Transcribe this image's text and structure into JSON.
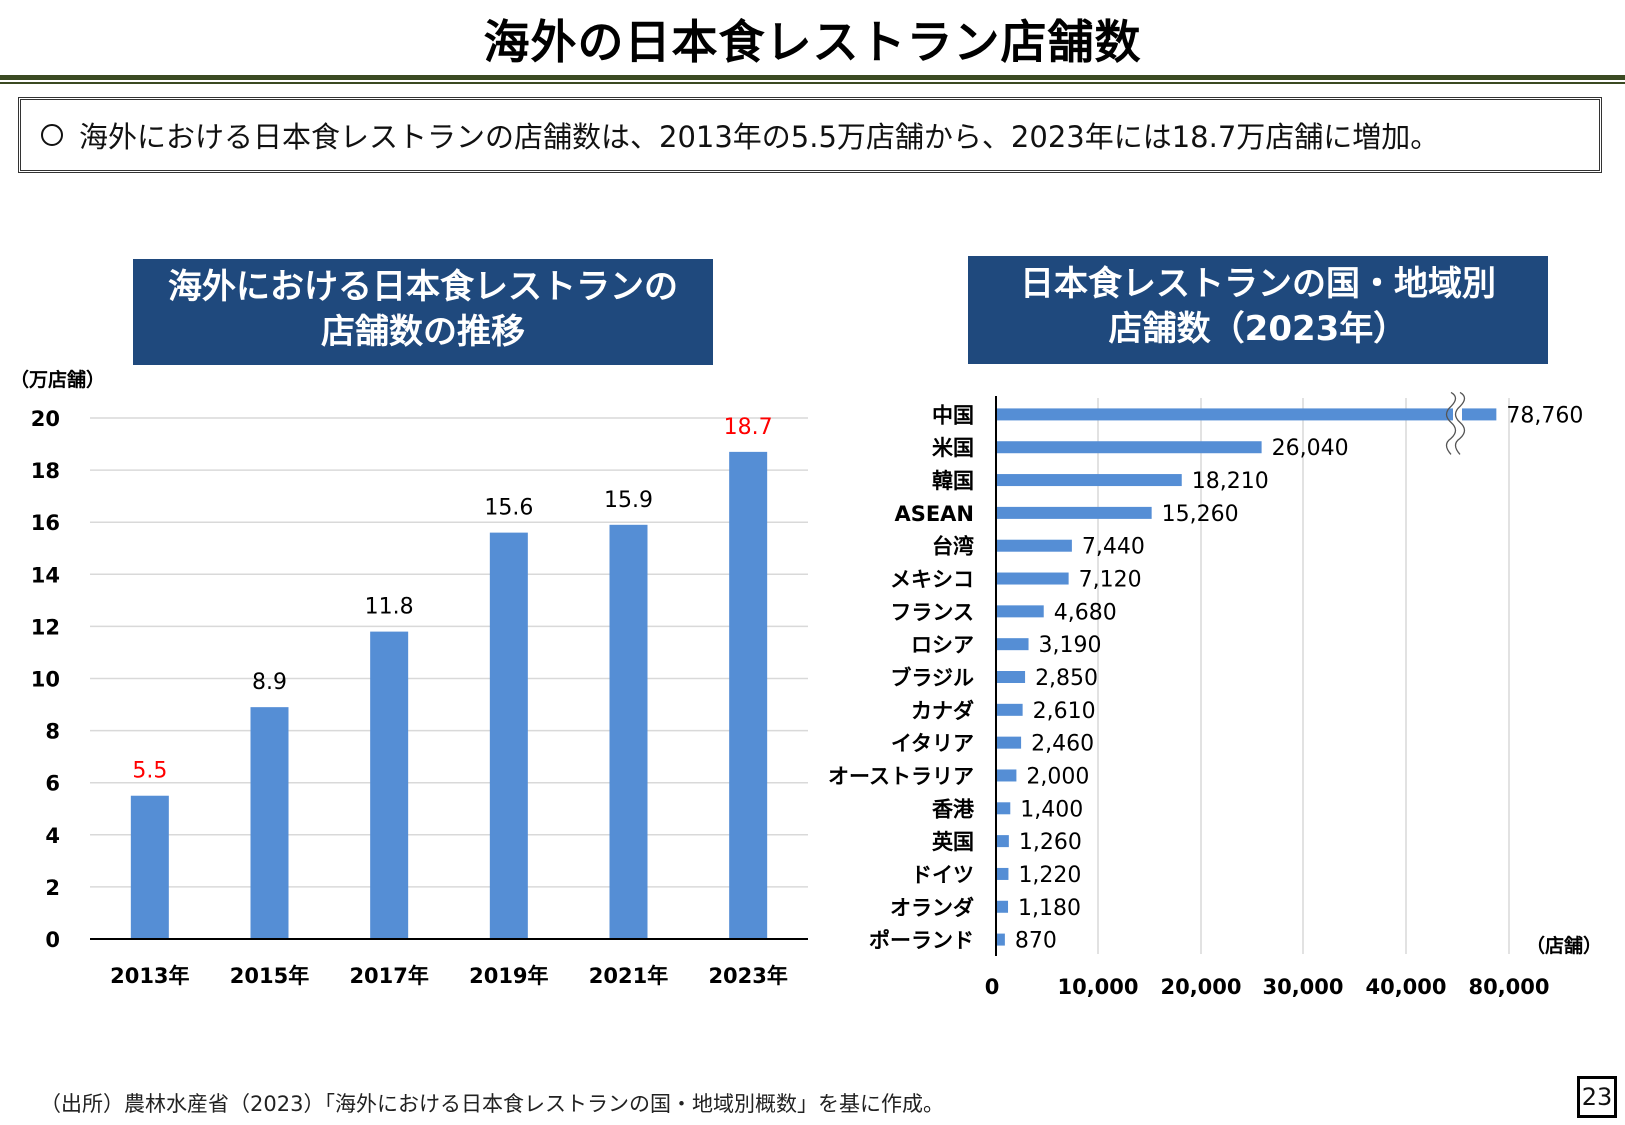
{
  "page": {
    "title": "海外の日本食レストラン店舗数",
    "summary": "海外における日本食レストランの店舗数は、2013年の5.5万店舗から、2023年には18.7万店舗に増加。",
    "source": "（出所）農林水産省（2023）「海外における日本食レストランの国・地域別概数」を基に作成。",
    "page_number": "23"
  },
  "chart_data": [
    {
      "type": "bar",
      "title_lines": [
        "海外における日本食レストランの",
        "店舗数の推移"
      ],
      "ylabel": "（万店舗）",
      "categories": [
        "2013年",
        "2015年",
        "2017年",
        "2019年",
        "2021年",
        "2023年"
      ],
      "values": [
        5.5,
        8.9,
        11.8,
        15.6,
        15.9,
        18.7
      ],
      "ylim": [
        0,
        20
      ],
      "yticks": [
        0,
        2,
        4,
        6,
        8,
        10,
        12,
        14,
        16,
        18,
        20
      ],
      "grid": true,
      "bar_color": "#558ed5",
      "highlight_color": "#ff0000",
      "highlighted": [
        "2013年",
        "2023年"
      ]
    },
    {
      "type": "bar",
      "orientation": "horizontal",
      "title_lines": [
        "日本食レストランの国・地域別",
        "店舗数（2023年）"
      ],
      "xlabel": "（店舗）",
      "categories": [
        "中国",
        "米国",
        "韓国",
        "ASEAN",
        "台湾",
        "メキシコ",
        "フランス",
        "ロシア",
        "ブラジル",
        "カナダ",
        "イタリア",
        "オーストラリア",
        "香港",
        "英国",
        "ドイツ",
        "オランダ",
        "ポーランド"
      ],
      "values": [
        78760,
        26040,
        18210,
        15260,
        7440,
        7120,
        4680,
        3190,
        2850,
        2610,
        2460,
        2000,
        1400,
        1260,
        1220,
        1180,
        870
      ],
      "value_labels": [
        "78,760",
        "26,040",
        "18,210",
        "15,260",
        "7,440",
        "7,120",
        "4,680",
        "3,190",
        "2,850",
        "2,610",
        "2,460",
        "2,000",
        "1,400",
        "1,260",
        "1,220",
        "1,180",
        "870"
      ],
      "xticks": [
        {
          "value": 0,
          "label": "0"
        },
        {
          "value": 10000,
          "label": "10,000"
        },
        {
          "value": 20000,
          "label": "20,000"
        },
        {
          "value": 30000,
          "label": "30,000"
        },
        {
          "value": 40000,
          "label": "40,000"
        },
        {
          "value": 80000,
          "label": "80,000"
        }
      ],
      "axis_break": {
        "after": 40000,
        "resumes_at": 80000
      },
      "grid": true,
      "bar_color": "#558ed5"
    }
  ]
}
